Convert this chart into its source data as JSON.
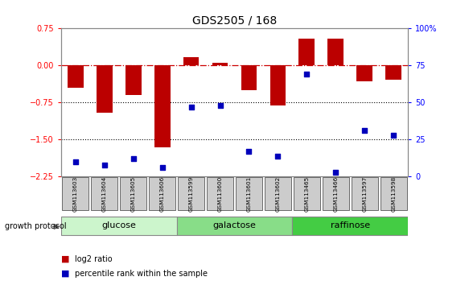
{
  "title": "GDS2505 / 168",
  "samples": [
    "GSM113603",
    "GSM113604",
    "GSM113605",
    "GSM113606",
    "GSM113599",
    "GSM113600",
    "GSM113601",
    "GSM113602",
    "GSM113465",
    "GSM113466",
    "GSM113597",
    "GSM113598"
  ],
  "log2_ratio": [
    -0.45,
    -0.95,
    -0.6,
    -1.65,
    0.17,
    0.05,
    -0.5,
    -0.8,
    0.55,
    0.55,
    -0.32,
    -0.28
  ],
  "percentile_rank": [
    10,
    8,
    12,
    6,
    47,
    48,
    17,
    14,
    69,
    3,
    31,
    28
  ],
  "ylim_left": [
    -2.25,
    0.75
  ],
  "ylim_right": [
    0,
    100
  ],
  "yticks_left": [
    0.75,
    0,
    -0.75,
    -1.5,
    -2.25
  ],
  "yticks_right": [
    100,
    75,
    50,
    25,
    0
  ],
  "groups": [
    {
      "label": "glucose",
      "start": 0,
      "end": 4,
      "color": "#ccf5cc"
    },
    {
      "label": "galactose",
      "start": 4,
      "end": 8,
      "color": "#88dd88"
    },
    {
      "label": "raffinose",
      "start": 8,
      "end": 12,
      "color": "#44cc44"
    }
  ],
  "bar_color": "#bb0000",
  "scatter_color": "#0000bb",
  "hline_color": "#cc0000",
  "dotted_line_color": "#000000",
  "group_label": "growth protocol",
  "legend_bar_label": "log2 ratio",
  "legend_scatter_label": "percentile rank within the sample",
  "bg_color": "#ffffff",
  "plot_bg_color": "#ffffff",
  "tick_label_fontsize": 7,
  "title_fontsize": 10,
  "sample_box_color": "#cccccc",
  "sample_box_edge": "#555555"
}
